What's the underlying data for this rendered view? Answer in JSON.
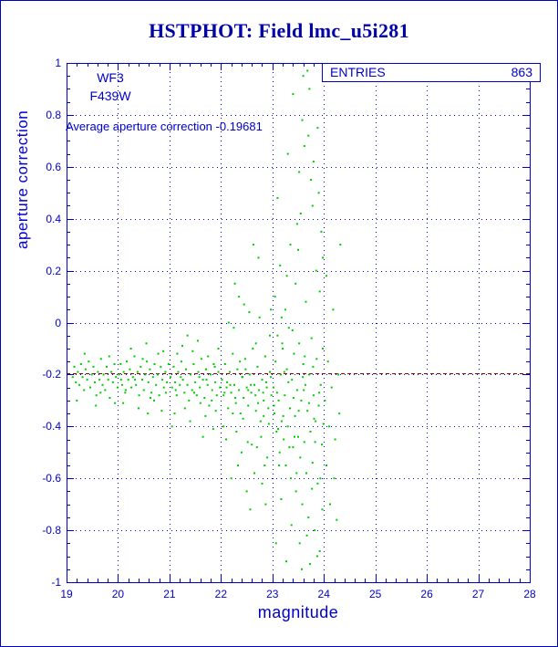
{
  "page": {
    "title": "HSTPHOT: Field lmc_u5i281"
  },
  "stats_box": {
    "label": "ENTRIES",
    "value": "863"
  },
  "annotations": {
    "camera": "WF3",
    "filter": "F439W",
    "average_text": "Average aperture correction -0.19681"
  },
  "axes": {
    "xlabel": "magnitude",
    "ylabel": "aperture correction"
  },
  "colors": {
    "title_blue": "#0000a8",
    "axis_blue": "#0000cd",
    "marker_green": "#00cd00",
    "ref_line_red": "#990000",
    "page_bg": "#ffffff"
  },
  "chart_data": {
    "type": "scatter",
    "title": "HSTPHOT: Field lmc_u5i281",
    "xlabel": "magnitude",
    "ylabel": "aperture correction",
    "xlim": [
      19,
      28
    ],
    "ylim": [
      -1,
      1
    ],
    "xticks": [
      19,
      20,
      21,
      22,
      23,
      24,
      25,
      26,
      27,
      28
    ],
    "xtick_labels": [
      "19",
      "20",
      "21",
      "22",
      "23",
      "24",
      "25",
      "26",
      "27",
      "28"
    ],
    "yticks": [
      1,
      0.8,
      0.6,
      0.4,
      0.2,
      0,
      -0.2,
      -0.4,
      -0.6,
      -0.8,
      -1
    ],
    "ytick_labels": [
      "1",
      "0.8",
      "0.6",
      "0.4",
      "0.2",
      "0",
      "-0.2",
      "-0.4",
      "-0.6",
      "-0.8",
      "-1"
    ],
    "grid": true,
    "legend": "none",
    "entries": 863,
    "average_aperture_correction": -0.19681,
    "reference_line": {
      "y": -0.19681,
      "style": "dashed",
      "color": "#990000"
    },
    "marker_color": "#00cd00",
    "points": [
      [
        19.12,
        -0.21
      ],
      [
        19.15,
        -0.17
      ],
      [
        19.18,
        -0.23
      ],
      [
        19.22,
        -0.19
      ],
      [
        19.25,
        -0.24
      ],
      [
        19.28,
        -0.16
      ],
      [
        19.31,
        -0.21
      ],
      [
        19.34,
        -0.26
      ],
      [
        19.37,
        -0.18
      ],
      [
        19.4,
        -0.22
      ],
      [
        19.43,
        -0.15
      ],
      [
        19.46,
        -0.25
      ],
      [
        19.49,
        -0.2
      ],
      [
        19.52,
        -0.17
      ],
      [
        19.55,
        -0.23
      ],
      [
        19.58,
        -0.28
      ],
      [
        19.61,
        -0.19
      ],
      [
        19.64,
        -0.22
      ],
      [
        19.67,
        -0.14
      ],
      [
        19.7,
        -0.24
      ],
      [
        19.72,
        -0.2
      ],
      [
        19.75,
        -0.26
      ],
      [
        19.78,
        -0.17
      ],
      [
        19.81,
        -0.22
      ],
      [
        19.84,
        -0.29
      ],
      [
        19.87,
        -0.19
      ],
      [
        19.9,
        -0.23
      ],
      [
        19.93,
        -0.16
      ],
      [
        19.96,
        -0.21
      ],
      [
        19.99,
        -0.25
      ],
      [
        19.2,
        -0.3
      ],
      [
        19.35,
        -0.12
      ],
      [
        19.57,
        -0.32
      ],
      [
        19.66,
        -0.27
      ],
      [
        19.83,
        -0.13
      ],
      [
        19.94,
        -0.31
      ],
      [
        20.02,
        -0.2
      ],
      [
        20.05,
        -0.16
      ],
      [
        20.08,
        -0.24
      ],
      [
        20.11,
        -0.19
      ],
      [
        20.14,
        -0.27
      ],
      [
        20.17,
        -0.15
      ],
      [
        20.2,
        -0.22
      ],
      [
        20.23,
        -0.18
      ],
      [
        20.26,
        -0.25
      ],
      [
        20.29,
        -0.21
      ],
      [
        20.32,
        -0.13
      ],
      [
        20.35,
        -0.24
      ],
      [
        20.38,
        -0.19
      ],
      [
        20.41,
        -0.28
      ],
      [
        20.44,
        -0.17
      ],
      [
        20.47,
        -0.22
      ],
      [
        20.5,
        -0.26
      ],
      [
        20.53,
        -0.2
      ],
      [
        20.56,
        -0.15
      ],
      [
        20.59,
        -0.23
      ],
      [
        20.62,
        -0.18
      ],
      [
        20.65,
        -0.27
      ],
      [
        20.68,
        -0.21
      ],
      [
        20.71,
        -0.16
      ],
      [
        20.74,
        -0.24
      ],
      [
        20.77,
        -0.2
      ],
      [
        20.8,
        -0.28
      ],
      [
        20.83,
        -0.17
      ],
      [
        20.86,
        -0.22
      ],
      [
        20.89,
        -0.25
      ],
      [
        20.92,
        -0.19
      ],
      [
        20.95,
        -0.23
      ],
      [
        20.98,
        -0.16
      ],
      [
        20.1,
        -0.31
      ],
      [
        20.25,
        -0.1
      ],
      [
        20.4,
        -0.33
      ],
      [
        20.55,
        -0.08
      ],
      [
        20.7,
        -0.3
      ],
      [
        20.85,
        -0.34
      ],
      [
        20.15,
        -0.26
      ],
      [
        20.33,
        -0.22
      ],
      [
        20.48,
        -0.14
      ],
      [
        20.63,
        -0.29
      ],
      [
        20.78,
        -0.12
      ],
      [
        20.93,
        -0.27
      ],
      [
        20.06,
        -0.22
      ],
      [
        20.58,
        -0.35
      ],
      [
        20.88,
        -0.11
      ],
      [
        21.02,
        -0.21
      ],
      [
        21.05,
        -0.25
      ],
      [
        21.08,
        -0.17
      ],
      [
        21.11,
        -0.23
      ],
      [
        21.14,
        -0.28
      ],
      [
        21.17,
        -0.19
      ],
      [
        21.2,
        -0.24
      ],
      [
        21.23,
        -0.15
      ],
      [
        21.26,
        -0.22
      ],
      [
        21.29,
        -0.27
      ],
      [
        21.32,
        -0.18
      ],
      [
        21.35,
        -0.24
      ],
      [
        21.38,
        -0.3
      ],
      [
        21.41,
        -0.2
      ],
      [
        21.44,
        -0.26
      ],
      [
        21.47,
        -0.16
      ],
      [
        21.5,
        -0.23
      ],
      [
        21.53,
        -0.28
      ],
      [
        21.56,
        -0.19
      ],
      [
        21.59,
        -0.25
      ],
      [
        21.62,
        -0.14
      ],
      [
        21.65,
        -0.22
      ],
      [
        21.68,
        -0.29
      ],
      [
        21.71,
        -0.18
      ],
      [
        21.74,
        -0.24
      ],
      [
        21.77,
        -0.32
      ],
      [
        21.8,
        -0.2
      ],
      [
        21.83,
        -0.26
      ],
      [
        21.86,
        -0.16
      ],
      [
        21.89,
        -0.23
      ],
      [
        21.92,
        -0.28
      ],
      [
        21.95,
        -0.19
      ],
      [
        21.98,
        -0.25
      ],
      [
        21.1,
        -0.35
      ],
      [
        21.25,
        -0.09
      ],
      [
        21.4,
        -0.38
      ],
      [
        21.55,
        -0.07
      ],
      [
        21.7,
        -0.36
      ],
      [
        21.85,
        -0.41
      ],
      [
        21.15,
        -0.12
      ],
      [
        21.3,
        -0.33
      ],
      [
        21.45,
        -0.11
      ],
      [
        21.6,
        -0.31
      ],
      [
        21.75,
        -0.13
      ],
      [
        21.9,
        -0.34
      ],
      [
        21.05,
        -0.4
      ],
      [
        21.35,
        -0.05
      ],
      [
        21.65,
        -0.44
      ],
      [
        21.95,
        -0.1
      ],
      [
        21.22,
        -0.21
      ],
      [
        21.48,
        -0.27
      ],
      [
        21.72,
        -0.22
      ],
      [
        21.88,
        -0.17
      ],
      [
        21.12,
        -0.26
      ],
      [
        21.58,
        -0.21
      ],
      [
        21.82,
        -0.3
      ],
      [
        22.02,
        -0.22
      ],
      [
        22.05,
        -0.28
      ],
      [
        22.08,
        -0.16
      ],
      [
        22.11,
        -0.25
      ],
      [
        22.14,
        -0.33
      ],
      [
        22.17,
        -0.19
      ],
      [
        22.2,
        -0.27
      ],
      [
        22.23,
        -0.12
      ],
      [
        22.26,
        -0.24
      ],
      [
        22.29,
        -0.31
      ],
      [
        22.32,
        -0.18
      ],
      [
        22.35,
        -0.26
      ],
      [
        22.38,
        -0.35
      ],
      [
        22.41,
        -0.21
      ],
      [
        22.44,
        -0.29
      ],
      [
        22.47,
        -0.14
      ],
      [
        22.5,
        -0.25
      ],
      [
        22.53,
        -0.32
      ],
      [
        22.56,
        -0.2
      ],
      [
        22.59,
        -0.27
      ],
      [
        22.62,
        -0.1
      ],
      [
        22.65,
        -0.24
      ],
      [
        22.68,
        -0.34
      ],
      [
        22.71,
        -0.17
      ],
      [
        22.74,
        -0.26
      ],
      [
        22.77,
        -0.38
      ],
      [
        22.8,
        -0.22
      ],
      [
        22.83,
        -0.3
      ],
      [
        22.86,
        -0.13
      ],
      [
        22.89,
        -0.25
      ],
      [
        22.92,
        -0.33
      ],
      [
        22.95,
        -0.19
      ],
      [
        22.98,
        -0.28
      ],
      [
        22.1,
        -0.45
      ],
      [
        22.25,
        -0.02
      ],
      [
        22.4,
        -0.5
      ],
      [
        22.55,
        0.04
      ],
      [
        22.7,
        -0.48
      ],
      [
        22.85,
        -0.55
      ],
      [
        22.15,
        0
      ],
      [
        22.3,
        -0.42
      ],
      [
        22.45,
        0.07
      ],
      [
        22.6,
        -0.47
      ],
      [
        22.75,
        0.02
      ],
      [
        22.9,
        -0.52
      ],
      [
        22.05,
        -0.4
      ],
      [
        22.35,
        0.1
      ],
      [
        22.65,
        -0.58
      ],
      [
        22.95,
        -0.05
      ],
      [
        22.2,
        -0.6
      ],
      [
        22.5,
        -0.65
      ],
      [
        22.8,
        -0.62
      ],
      [
        22.12,
        -0.23
      ],
      [
        22.28,
        -0.29
      ],
      [
        22.42,
        -0.21
      ],
      [
        22.58,
        -0.24
      ],
      [
        22.72,
        -0.31
      ],
      [
        22.88,
        -0.23
      ],
      [
        22.07,
        -0.27
      ],
      [
        22.23,
        -0.35
      ],
      [
        22.37,
        -0.15
      ],
      [
        22.53,
        -0.26
      ],
      [
        22.67,
        -0.28
      ],
      [
        22.83,
        -0.36
      ],
      [
        22.97,
        -0.21
      ],
      [
        22.18,
        -0.24
      ],
      [
        22.48,
        -0.18
      ],
      [
        22.78,
        -0.44
      ],
      [
        22.93,
        -0.39
      ],
      [
        22.33,
        -0.55
      ],
      [
        22.63,
        0.3
      ],
      [
        22.73,
        0.25
      ],
      [
        22.87,
        -0.7
      ],
      [
        22.57,
        -0.72
      ],
      [
        22.27,
        0.15
      ],
      [
        22.97,
        0.05
      ],
      [
        22.43,
        -0.37
      ],
      [
        22.68,
        -0.08
      ],
      [
        22.82,
        -0.27
      ],
      [
        22.52,
        -0.46
      ],
      [
        23.02,
        -0.25
      ],
      [
        23.04,
        -0.35
      ],
      [
        23.06,
        -0.15
      ],
      [
        23.08,
        -0.42
      ],
      [
        23.1,
        -0.05
      ],
      [
        23.12,
        -0.3
      ],
      [
        23.14,
        -0.5
      ],
      [
        23.16,
        -0.2
      ],
      [
        23.18,
        -0.38
      ],
      [
        23.2,
        -0.1
      ],
      [
        23.22,
        -0.45
      ],
      [
        23.24,
        -0.28
      ],
      [
        23.26,
        -0.55
      ],
      [
        23.28,
        -0.18
      ],
      [
        23.3,
        -0.4
      ],
      [
        23.32,
        -0.02
      ],
      [
        23.34,
        -0.33
      ],
      [
        23.36,
        -0.6
      ],
      [
        23.38,
        -0.22
      ],
      [
        23.4,
        -0.48
      ],
      [
        23.42,
        -0.12
      ],
      [
        23.44,
        -0.36
      ],
      [
        23.46,
        -0.65
      ],
      [
        23.48,
        -0.26
      ],
      [
        23.5,
        -0.44
      ],
      [
        23.52,
        -0.08
      ],
      [
        23.54,
        -0.52
      ],
      [
        23.56,
        -0.3
      ],
      [
        23.58,
        -0.7
      ],
      [
        23.6,
        -0.16
      ],
      [
        23.62,
        -0.46
      ],
      [
        23.64,
        -0.24
      ],
      [
        23.66,
        -0.58
      ],
      [
        23.68,
        -0.34
      ],
      [
        23.7,
        -0.75
      ],
      [
        23.72,
        -0.2
      ],
      [
        23.74,
        -0.42
      ],
      [
        23.76,
        -0.06
      ],
      [
        23.78,
        -0.54
      ],
      [
        23.8,
        -0.28
      ],
      [
        23.82,
        -0.8
      ],
      [
        23.84,
        -0.38
      ],
      [
        23.86,
        -0.14
      ],
      [
        23.88,
        -0.62
      ],
      [
        23.9,
        -0.32
      ],
      [
        23.92,
        -0.88
      ],
      [
        23.94,
        -0.24
      ],
      [
        23.96,
        -0.47
      ],
      [
        23.98,
        -0.1
      ],
      [
        23.05,
        0.1
      ],
      [
        23.15,
        0.22
      ],
      [
        23.25,
        0.05
      ],
      [
        23.35,
        0.3
      ],
      [
        23.45,
        0.15
      ],
      [
        23.55,
        0.42
      ],
      [
        23.65,
        0.08
      ],
      [
        23.75,
        0.55
      ],
      [
        23.85,
        0.2
      ],
      [
        23.95,
        0.35
      ],
      [
        23.1,
        0.48
      ],
      [
        23.3,
        0.65
      ],
      [
        23.5,
        0.28
      ],
      [
        23.7,
        0.72
      ],
      [
        23.9,
        0.5
      ],
      [
        23.4,
        0.88
      ],
      [
        23.6,
        0.95
      ],
      [
        23.8,
        0.62
      ],
      [
        23.68,
        0.97
      ],
      [
        23.72,
        0.9
      ],
      [
        23.58,
        0.78
      ],
      [
        23.62,
        0.68
      ],
      [
        23.78,
        0.45
      ],
      [
        23.52,
        0.58
      ],
      [
        23.88,
        0.75
      ],
      [
        23.48,
        0.38
      ],
      [
        23.92,
        0.12
      ],
      [
        23.28,
        0.18
      ],
      [
        23.18,
        0.02
      ],
      [
        23.98,
        0.25
      ],
      [
        23.07,
        -0.85
      ],
      [
        23.17,
        -0.68
      ],
      [
        23.27,
        -0.92
      ],
      [
        23.37,
        -0.78
      ],
      [
        23.47,
        -0.58
      ],
      [
        23.57,
        -0.95
      ],
      [
        23.67,
        -0.82
      ],
      [
        23.77,
        -0.64
      ],
      [
        23.87,
        -0.9
      ],
      [
        23.97,
        -0.72
      ],
      [
        23.13,
        -0.55
      ],
      [
        23.33,
        -0.48
      ],
      [
        23.53,
        -0.85
      ],
      [
        23.73,
        -0.93
      ],
      [
        23.93,
        -0.6
      ],
      [
        23.03,
        -0.32
      ],
      [
        23.09,
        -0.27
      ],
      [
        23.21,
        -0.36
      ],
      [
        23.31,
        -0.23
      ],
      [
        23.41,
        -0.29
      ],
      [
        23.51,
        -0.34
      ],
      [
        23.61,
        -0.26
      ],
      [
        23.71,
        -0.31
      ],
      [
        23.81,
        -0.37
      ],
      [
        23.91,
        -0.27
      ],
      [
        23.11,
        -0.41
      ],
      [
        23.23,
        -0.19
      ],
      [
        23.43,
        -0.44
      ],
      [
        23.63,
        -0.13
      ],
      [
        23.83,
        -0.46
      ],
      [
        23.19,
        -0.08
      ],
      [
        23.39,
        -0.03
      ],
      [
        23.59,
        -0.21
      ],
      [
        23.79,
        -0.17
      ],
      [
        23.99,
        -0.39
      ],
      [
        24.02,
        -0.3
      ],
      [
        24.05,
        -0.55
      ],
      [
        24.08,
        -0.15
      ],
      [
        24.12,
        -0.7
      ],
      [
        24.15,
        -0.25
      ],
      [
        24.18,
        0.05
      ],
      [
        24.22,
        -0.45
      ],
      [
        24.25,
        -0.76
      ],
      [
        24.28,
        -0.2
      ],
      [
        24.32,
        0.3
      ],
      [
        24.05,
        0.18
      ],
      [
        24.1,
        -0.4
      ],
      [
        24.2,
        -0.6
      ],
      [
        24.3,
        -0.35
      ]
    ]
  }
}
